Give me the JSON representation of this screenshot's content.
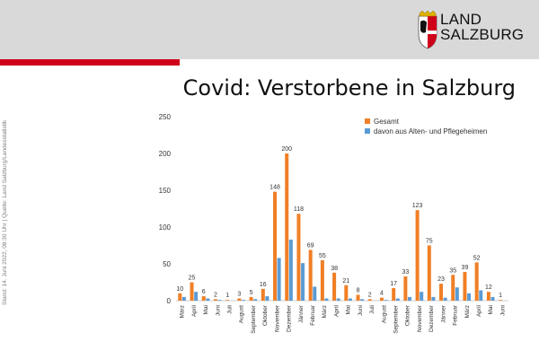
{
  "header": {
    "brand_line1": "LAND",
    "brand_line2": "SALZBURG",
    "brand_color": "#d0021b"
  },
  "title": "Covid: Verstorbene in Salzburg",
  "source": "Stand: 14. Juni 2022, 08:30 Uhr | Quelle: Land Salzburg/Landesstatistik",
  "chart_data": {
    "type": "bar",
    "ylim": [
      0,
      250
    ],
    "yticks": [
      0,
      50,
      100,
      150,
      200,
      250
    ],
    "grid": false,
    "legend_position": "top-right",
    "categories": [
      "März",
      "April",
      "Mai",
      "Juni",
      "Juli",
      "August",
      "September",
      "Oktober",
      "November",
      "Dezember",
      "Jänner",
      "Februar",
      "März",
      "April",
      "Mai",
      "Juni",
      "Juli",
      "August",
      "September",
      "Oktober",
      "November",
      "Dezember",
      "Jänner",
      "Februar",
      "März",
      "April",
      "Mai",
      "Juni"
    ],
    "series": [
      {
        "name": "Gesamt",
        "color": "#f07f26",
        "values": [
          10,
          25,
          6,
          2,
          1,
          3,
          5,
          16,
          148,
          200,
          118,
          69,
          55,
          38,
          21,
          8,
          2,
          4,
          17,
          33,
          123,
          75,
          23,
          35,
          39,
          52,
          12,
          1
        ],
        "labels": [
          "10",
          "25",
          "6",
          "2",
          "1",
          "3",
          "5",
          "16",
          "148",
          "200",
          "118",
          "69",
          "55",
          "38",
          "21",
          "8",
          "2",
          "4",
          "17",
          "33",
          "123",
          "75",
          "23",
          "35",
          "39",
          "52",
          "12",
          "1"
        ]
      },
      {
        "name": "davon aus Alten- und Pflegeheimen",
        "color": "#5b9bd5",
        "values": [
          5,
          12,
          3,
          1,
          0,
          1,
          2,
          6,
          58,
          83,
          51,
          19,
          3,
          3,
          3,
          2,
          0,
          1,
          3,
          5,
          12,
          5,
          4,
          18,
          10,
          14,
          5,
          0
        ]
      }
    ]
  }
}
